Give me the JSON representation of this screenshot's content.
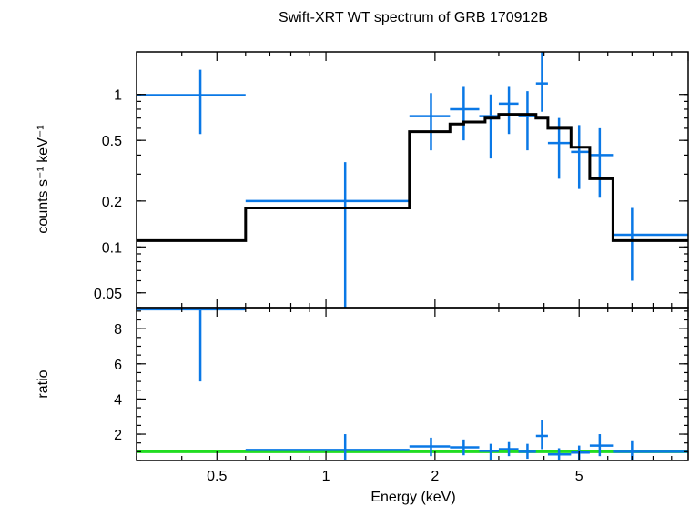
{
  "chart_data": {
    "type": "line",
    "title": "Swift-XRT WT spectrum of GRB 170912B",
    "xlabel": "Energy (keV)",
    "xscale": "log",
    "xlim": [
      0.3,
      10
    ],
    "xticks": [
      {
        "value": 0.5,
        "label": "0.5"
      },
      {
        "value": 1,
        "label": "1"
      },
      {
        "value": 2,
        "label": "2"
      },
      {
        "value": 5,
        "label": "5"
      }
    ],
    "colors": {
      "data": "#0a78e6",
      "model": "#000000",
      "unity": "#22dd22"
    },
    "panels": [
      {
        "name": "spectrum",
        "ylabel": "counts s⁻¹ keV⁻¹",
        "yscale": "log",
        "ylim": [
          0.04,
          1.9
        ],
        "yticks": [
          {
            "value": 1,
            "label": "1"
          },
          {
            "value": 0.5,
            "label": "0.5"
          },
          {
            "value": 0.2,
            "label": "0.2"
          },
          {
            "value": 0.1,
            "label": "0.1"
          },
          {
            "value": 0.05,
            "label": "0.05"
          }
        ],
        "series": [
          {
            "kind": "data",
            "points": [
              {
                "x": 0.45,
                "xlo": 0.3,
                "xhi": 0.6,
                "y": 0.99,
                "ylo": 0.55,
                "yhi": 1.45
              },
              {
                "x": 1.13,
                "xlo": 0.6,
                "xhi": 1.7,
                "y": 0.2,
                "ylo": 0.04,
                "yhi": 0.36
              },
              {
                "x": 1.95,
                "xlo": 1.7,
                "xhi": 2.2,
                "y": 0.72,
                "ylo": 0.43,
                "yhi": 1.02
              },
              {
                "x": 2.4,
                "xlo": 2.2,
                "xhi": 2.65,
                "y": 0.8,
                "ylo": 0.5,
                "yhi": 1.12
              },
              {
                "x": 2.85,
                "xlo": 2.65,
                "xhi": 3.0,
                "y": 0.72,
                "ylo": 0.38,
                "yhi": 1.0
              },
              {
                "x": 3.2,
                "xlo": 3.0,
                "xhi": 3.4,
                "y": 0.87,
                "ylo": 0.55,
                "yhi": 1.12
              },
              {
                "x": 3.6,
                "xlo": 3.4,
                "xhi": 3.8,
                "y": 0.72,
                "ylo": 0.43,
                "yhi": 1.05
              },
              {
                "x": 3.95,
                "xlo": 3.8,
                "xhi": 4.1,
                "y": 1.18,
                "ylo": 0.77,
                "yhi": 1.9
              },
              {
                "x": 4.4,
                "xlo": 4.1,
                "xhi": 4.75,
                "y": 0.48,
                "ylo": 0.28,
                "yhi": 0.7
              },
              {
                "x": 5.0,
                "xlo": 4.75,
                "xhi": 5.35,
                "y": 0.42,
                "ylo": 0.24,
                "yhi": 0.63
              },
              {
                "x": 5.7,
                "xlo": 5.35,
                "xhi": 6.2,
                "y": 0.4,
                "ylo": 0.21,
                "yhi": 0.6
              },
              {
                "x": 7.0,
                "xlo": 6.2,
                "xhi": 10.0,
                "y": 0.12,
                "ylo": 0.06,
                "yhi": 0.18
              }
            ]
          },
          {
            "kind": "model",
            "steps": [
              {
                "xlo": 0.3,
                "xhi": 0.6,
                "y": 0.11
              },
              {
                "xlo": 0.6,
                "xhi": 1.7,
                "y": 0.18
              },
              {
                "xlo": 1.7,
                "xhi": 2.2,
                "y": 0.57
              },
              {
                "xlo": 2.2,
                "xhi": 2.4,
                "y": 0.64
              },
              {
                "xlo": 2.4,
                "xhi": 2.75,
                "y": 0.66
              },
              {
                "xlo": 2.75,
                "xhi": 3.0,
                "y": 0.7
              },
              {
                "xlo": 3.0,
                "xhi": 3.4,
                "y": 0.74
              },
              {
                "xlo": 3.4,
                "xhi": 3.8,
                "y": 0.74
              },
              {
                "xlo": 3.8,
                "xhi": 4.1,
                "y": 0.7
              },
              {
                "xlo": 4.1,
                "xhi": 4.75,
                "y": 0.6
              },
              {
                "xlo": 4.75,
                "xhi": 5.35,
                "y": 0.45
              },
              {
                "xlo": 5.35,
                "xhi": 6.2,
                "y": 0.28
              },
              {
                "xlo": 6.2,
                "xhi": 10.0,
                "y": 0.11
              }
            ]
          }
        ]
      },
      {
        "name": "ratio",
        "ylabel": "ratio",
        "yscale": "linear",
        "ylim": [
          0.5,
          9.2
        ],
        "yticks": [
          {
            "value": 8,
            "label": "8"
          },
          {
            "value": 6,
            "label": "6"
          },
          {
            "value": 4,
            "label": "4"
          },
          {
            "value": 2,
            "label": "2"
          }
        ],
        "reference_line": 1,
        "series": [
          {
            "kind": "data",
            "points": [
              {
                "x": 0.45,
                "xlo": 0.3,
                "xhi": 0.6,
                "y": 9.1,
                "ylo": 5.0,
                "yhi": 9.2
              },
              {
                "x": 1.13,
                "xlo": 0.6,
                "xhi": 1.7,
                "y": 1.1,
                "ylo": 0.5,
                "yhi": 2.0
              },
              {
                "x": 1.95,
                "xlo": 1.7,
                "xhi": 2.2,
                "y": 1.3,
                "ylo": 0.75,
                "yhi": 1.8
              },
              {
                "x": 2.4,
                "xlo": 2.2,
                "xhi": 2.65,
                "y": 1.25,
                "ylo": 0.8,
                "yhi": 1.7
              },
              {
                "x": 2.85,
                "xlo": 2.65,
                "xhi": 3.0,
                "y": 1.05,
                "ylo": 0.55,
                "yhi": 1.45
              },
              {
                "x": 3.2,
                "xlo": 3.0,
                "xhi": 3.4,
                "y": 1.15,
                "ylo": 0.75,
                "yhi": 1.55
              },
              {
                "x": 3.6,
                "xlo": 3.4,
                "xhi": 3.8,
                "y": 1.0,
                "ylo": 0.6,
                "yhi": 1.45
              },
              {
                "x": 3.95,
                "xlo": 3.8,
                "xhi": 4.1,
                "y": 1.9,
                "ylo": 1.15,
                "yhi": 2.8
              },
              {
                "x": 4.4,
                "xlo": 4.1,
                "xhi": 4.75,
                "y": 0.85,
                "ylo": 0.5,
                "yhi": 1.2
              },
              {
                "x": 5.0,
                "xlo": 4.75,
                "xhi": 5.35,
                "y": 0.95,
                "ylo": 0.55,
                "yhi": 1.35
              },
              {
                "x": 5.7,
                "xlo": 5.35,
                "xhi": 6.2,
                "y": 1.35,
                "ylo": 0.75,
                "yhi": 2.0
              },
              {
                "x": 7.0,
                "xlo": 6.2,
                "xhi": 10.0,
                "y": 1.0,
                "ylo": 0.55,
                "yhi": 1.6
              }
            ]
          }
        ]
      }
    ]
  }
}
